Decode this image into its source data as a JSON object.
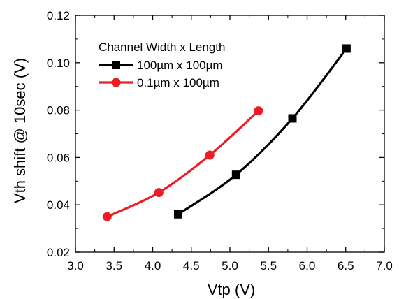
{
  "chart_data": {
    "type": "line",
    "xlabel": "Vtp (V)",
    "ylabel": "Vth shift @ 10sec (V)",
    "xlim": [
      3.0,
      7.0
    ],
    "ylim": [
      0.02,
      0.12
    ],
    "xticks": [
      "3.0",
      "3.5",
      "4.0",
      "4.5",
      "5.0",
      "5.5",
      "6.0",
      "6.5",
      "7.0"
    ],
    "yticks": [
      "0.02",
      "0.04",
      "0.06",
      "0.08",
      "0.10",
      "0.12"
    ],
    "grid": false,
    "legend_title": "Channel Width x Length",
    "legend_position": "top-left",
    "series": [
      {
        "name": "100µm x 100µm",
        "color": "#000000",
        "marker": "square",
        "x": [
          4.33,
          5.08,
          5.81,
          6.51
        ],
        "y": [
          0.036,
          0.0527,
          0.0765,
          0.106
        ]
      },
      {
        "name": "0.1µm x 100µm",
        "color": "#ee1c24",
        "marker": "circle",
        "x": [
          3.41,
          4.08,
          4.74,
          5.37
        ],
        "y": [
          0.035,
          0.0452,
          0.061,
          0.0797
        ]
      }
    ]
  }
}
